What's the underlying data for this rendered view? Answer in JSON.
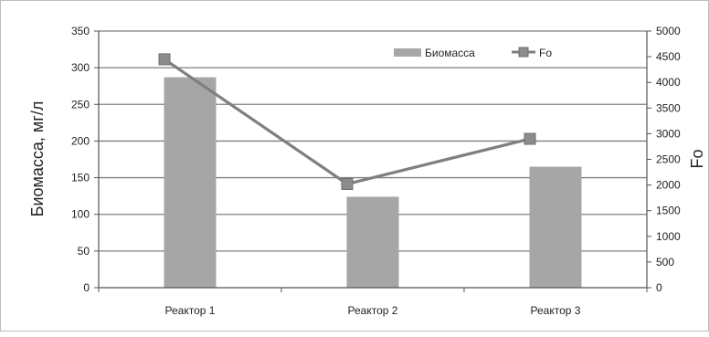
{
  "chart_data": {
    "type": "bar",
    "categories": [
      "Реактор 1",
      "Реактор 2",
      "Реактор 3"
    ],
    "series": [
      {
        "name": "Биомасса",
        "kind": "bar",
        "axis": "left",
        "values": [
          287,
          124,
          165
        ]
      },
      {
        "name": "Fo",
        "kind": "line",
        "axis": "right",
        "values": [
          4450,
          2020,
          2900
        ]
      }
    ],
    "ylabel": "Биомасса, мг/л",
    "y2label": "Fo",
    "ylim": [
      0,
      350
    ],
    "y2lim": [
      0,
      5000
    ],
    "yticks": [
      0,
      50,
      100,
      150,
      200,
      250,
      300,
      350
    ],
    "y2ticks": [
      0,
      500,
      1000,
      1500,
      2000,
      2500,
      3000,
      3500,
      4000,
      4500,
      5000
    ],
    "grid": true,
    "legend_position": "top-right",
    "colors": {
      "bar": "#a6a6a6",
      "line": "#7f7f7f",
      "marker": "#8c8c8c",
      "grid": "#7f7f7f"
    }
  }
}
